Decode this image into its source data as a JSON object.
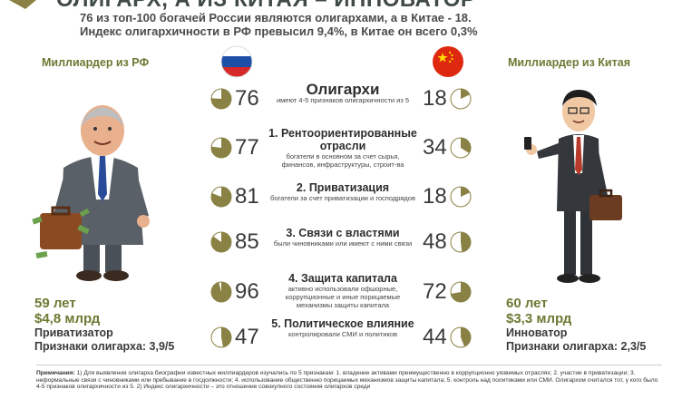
{
  "header": {
    "title": "ОЛИГАРХ, А ИЗ КИТАЯ – ИННОВАТОР",
    "subtitle_line1": "76 из топ-100 богачей России являются олигархами, а в Китае - 18.",
    "subtitle_line2": "Индекс олигархичности в РФ превысил 9,4%, в Китае он всего 0,3%"
  },
  "left_person": {
    "heading": "Миллиардер из РФ",
    "age": "59 лет",
    "wealth": "$4,8 млрд",
    "type": "Приватизатор",
    "signs": "Признаки олигарха: 3,9/5"
  },
  "right_person": {
    "heading": "Миллиардер из Китая",
    "age": "60 лет",
    "wealth": "$3,3 млрд",
    "type": "Инноватор",
    "signs": "Признаки олигарха: 2,3/5"
  },
  "colors": {
    "pie_fill": "#8a8244",
    "accent_green": "#6c7a33",
    "russia_white": "#ffffff",
    "russia_blue": "#1e4fa8",
    "russia_red": "#d62828",
    "china_red": "#de2910",
    "china_star": "#ffde00"
  },
  "icons": {
    "russia": "russia-flag-icon",
    "china": "china-flag-icon"
  },
  "categories": [
    {
      "title": "Олигархи",
      "desc": "имеют 4-5 признаков олигархичности из 5",
      "ru": 76,
      "cn": 18
    },
    {
      "title": "1. Рентоориентированные отрасли",
      "desc": "богатели в основном за счет сырья, финансов, инфраструктуры, строит-ва",
      "ru": 77,
      "cn": 34
    },
    {
      "title": "2. Приватизация",
      "desc": "богатели за счет приватизации и господрядов",
      "ru": 81,
      "cn": 18
    },
    {
      "title": "3. Связи с властями",
      "desc": "были чиновниками или имеют с ними связи",
      "ru": 85,
      "cn": 48
    },
    {
      "title": "4. Защита капитала",
      "desc": "активно использовали офшорные, коррупционные и иные порицаемые механизмы защиты капитала",
      "ru": 96,
      "cn": 72
    },
    {
      "title": "5. Политическое влияние",
      "desc": "контролировали СМИ и политиков",
      "ru": 47,
      "cn": 44
    }
  ],
  "footer": {
    "label": "Примечания:",
    "text": "1) Для выявления олигарха биографии известных миллиардеров изучались по 5 признакам: 1. владение активами преимущественно в коррупционно уязвимых отраслях; 2. участие в приватизации; 3. неформальные связи с чиновниками или пребывание в госдолжности; 4. использование общественно порицаемых механизмов защиты капитала; 5. контроль над политиками или СМИ. Олигархом считался тот, у кого было 4-5 признаков олигархичности из 5. 2) Индекс олигархичности – это отношение совокупного состояния олигархов среди"
  }
}
